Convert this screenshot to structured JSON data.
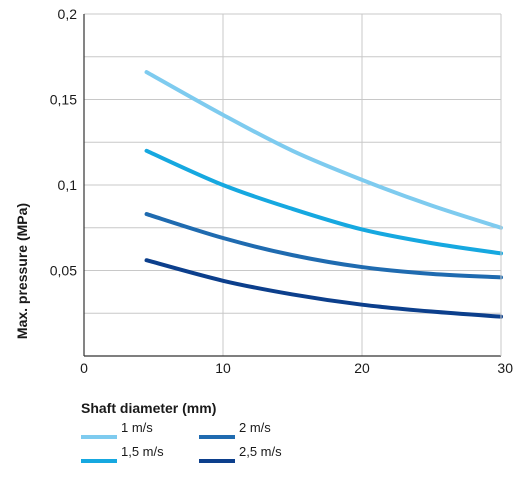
{
  "chart_data": {
    "type": "line",
    "title": "",
    "xlabel": "Shaft diameter  (mm)",
    "ylabel": "Max. pressure  (MPa)",
    "xlim": [
      0,
      30
    ],
    "ylim": [
      0,
      0.2
    ],
    "x_ticks": [
      0,
      10,
      20,
      30
    ],
    "x_tick_labels": [
      "0",
      "10",
      "20",
      "30"
    ],
    "y_ticks": [
      0.05,
      0.1,
      0.15,
      0.2
    ],
    "y_tick_labels": [
      "0,05",
      "0,1",
      "0,15",
      "0,2"
    ],
    "y_gridlines": [
      0.025,
      0.05,
      0.075,
      0.1,
      0.125,
      0.15,
      0.175,
      0.2
    ],
    "grid": true,
    "legend_position": "bottom-left",
    "series": [
      {
        "name": "1 m/s",
        "color": "#7ecbef",
        "x": [
          4.5,
          10,
          15,
          20,
          25,
          30
        ],
        "y": [
          0.166,
          0.141,
          0.12,
          0.103,
          0.088,
          0.075
        ]
      },
      {
        "name": "1,5 m/s",
        "color": "#16a8e0",
        "x": [
          4.5,
          10,
          15,
          20,
          25,
          30
        ],
        "y": [
          0.12,
          0.1,
          0.086,
          0.074,
          0.066,
          0.06
        ]
      },
      {
        "name": "2 m/s",
        "color": "#1f6bb0",
        "x": [
          4.5,
          10,
          15,
          20,
          25,
          30
        ],
        "y": [
          0.083,
          0.069,
          0.059,
          0.052,
          0.048,
          0.046
        ]
      },
      {
        "name": "2,5 m/s",
        "color": "#0c3f8c",
        "x": [
          4.5,
          10,
          15,
          20,
          25,
          30
        ],
        "y": [
          0.056,
          0.044,
          0.036,
          0.03,
          0.026,
          0.023
        ]
      }
    ]
  }
}
